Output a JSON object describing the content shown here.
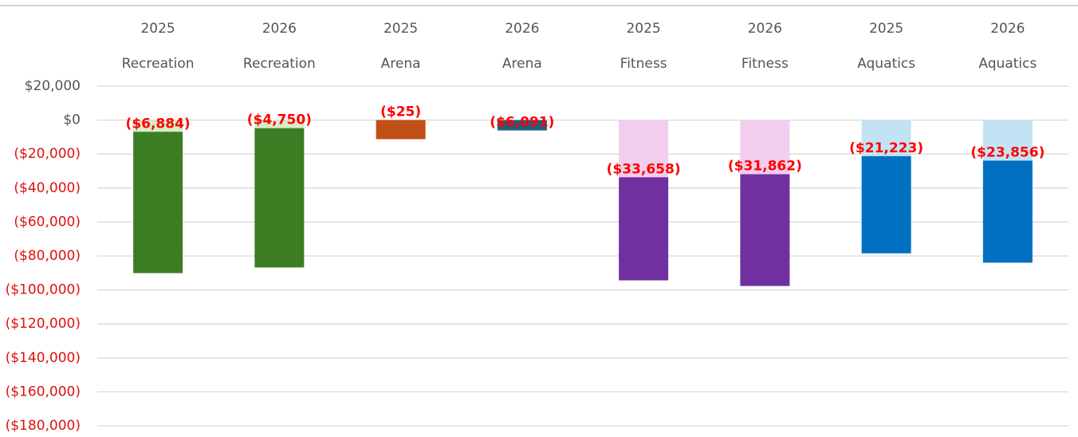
{
  "chart_data": {
    "type": "stacked_bar",
    "category_years": [
      "2025",
      "2026",
      "2025",
      "2026",
      "2025",
      "2026",
      "2025",
      "2026"
    ],
    "category_names": [
      "Recreation",
      "Recreation",
      "Arena",
      "Arena",
      "Fitness",
      "Fitness",
      "Aquatics",
      "Aquatics"
    ],
    "series": [
      {
        "colors": [
          "#d8ecc8",
          "#d8ecc8",
          "#c04f15",
          "#1f5f7f",
          "#f2cdee",
          "#f2cdee",
          "#c3e3f5",
          "#c3e3f5"
        ],
        "values": [
          -6884,
          -4750,
          -25,
          -6091,
          -33658,
          -31862,
          -21223,
          -23856
        ],
        "value_labels": [
          "($6,884)",
          "($4,750)",
          "($25)",
          "($6,091)",
          "($33,658)",
          "($31,862)",
          "($21,223)",
          "($23,856)"
        ]
      },
      {
        "colors": [
          "#3b7d23",
          "#3b7d23",
          "#c04f15",
          "#1f5f7f",
          "#7030a0",
          "#7030a0",
          "#0070c0",
          "#0070c0"
        ],
        "values": [
          -83200,
          -82000,
          -11200,
          null,
          -60700,
          -65800,
          -57200,
          -60100
        ]
      }
    ],
    "ylim": [
      -180000,
      20000
    ],
    "yticks": [
      {
        "value": 20000,
        "label": "$20,000"
      },
      {
        "value": 0,
        "label": "$0"
      },
      {
        "value": -20000,
        "label": "($20,000)"
      },
      {
        "value": -40000,
        "label": "($40,000)"
      },
      {
        "value": -60000,
        "label": "($60,000)"
      },
      {
        "value": -80000,
        "label": "($80,000)"
      },
      {
        "value": -100000,
        "label": "($100,000)"
      },
      {
        "value": -120000,
        "label": "($120,000)"
      },
      {
        "value": -140000,
        "label": "($140,000)"
      },
      {
        "value": -160000,
        "label": "($160,000)"
      },
      {
        "value": -180000,
        "label": "($180,000)"
      }
    ],
    "grid": true
  }
}
